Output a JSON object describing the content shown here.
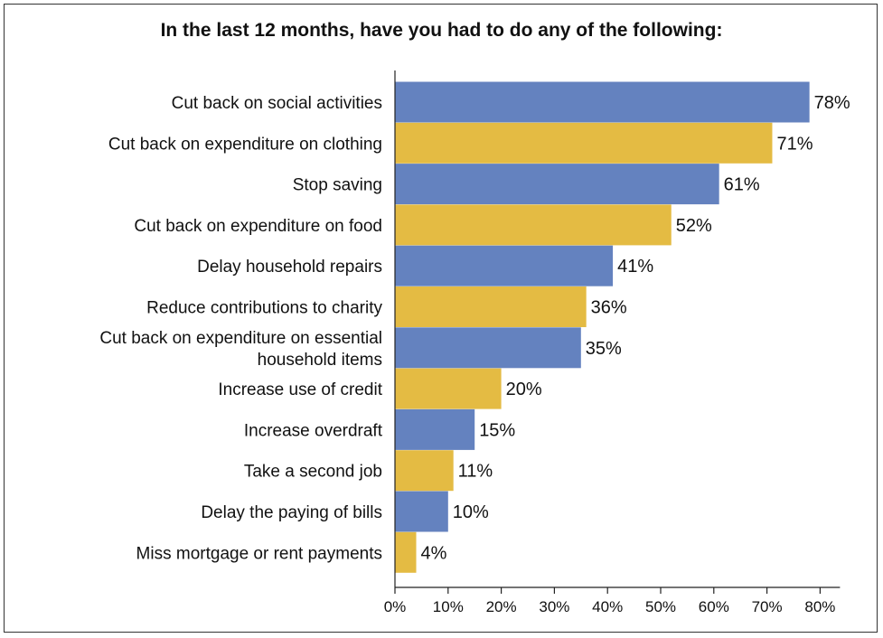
{
  "chart_data": {
    "type": "bar",
    "orientation": "horizontal",
    "title": "In the last 12 months, have you had to do any of the following:",
    "categories": [
      "Cut back on social activities",
      "Cut back on expenditure on clothing",
      "Stop saving",
      "Cut back on expenditure on food",
      "Delay household repairs",
      "Reduce contributions to charity",
      "Cut back on expenditure on essential household items",
      "Increase use of credit",
      "Increase overdraft",
      "Take a second job",
      "Delay the paying of bills",
      "Miss mortgage or rent payments"
    ],
    "category_lines": [
      [
        "Cut back on social activities"
      ],
      [
        "Cut back on expenditure on clothing"
      ],
      [
        "Stop saving"
      ],
      [
        "Cut back on expenditure on food"
      ],
      [
        "Delay household repairs"
      ],
      [
        "Reduce contributions to charity"
      ],
      [
        "Cut back on expenditure on essential",
        "household items"
      ],
      [
        "Increase use of credit"
      ],
      [
        "Increase overdraft"
      ],
      [
        "Take a second job"
      ],
      [
        "Delay the paying of bills"
      ],
      [
        "Miss mortgage or rent payments"
      ]
    ],
    "values": [
      78,
      71,
      61,
      52,
      41,
      36,
      35,
      20,
      15,
      11,
      10,
      4
    ],
    "value_labels": [
      "78%",
      "71%",
      "61%",
      "52%",
      "41%",
      "36%",
      "35%",
      "20%",
      "15%",
      "11%",
      "10%",
      "4%"
    ],
    "xlim": [
      0,
      80
    ],
    "xticks": [
      0,
      10,
      20,
      30,
      40,
      50,
      60,
      70,
      80
    ],
    "xtick_labels": [
      "0%",
      "10%",
      "20%",
      "30%",
      "40%",
      "50%",
      "60%",
      "70%",
      "80%"
    ],
    "xlabel": "",
    "ylabel": "",
    "grid": false,
    "bar_colors": [
      "#6482bf",
      "#e4bb43"
    ]
  }
}
